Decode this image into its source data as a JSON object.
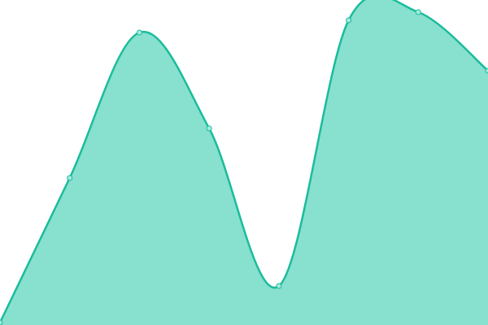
{
  "chart_data": {
    "type": "area",
    "categories": [
      null,
      null,
      null,
      null,
      null,
      null,
      null,
      null
    ],
    "values": [
      3,
      181,
      360,
      242,
      48,
      375,
      385,
      313
    ],
    "ylim": [
      0,
      400
    ],
    "color": "#1abc9c",
    "fill_color": "#88e0cf",
    "point_fill": "#a8eadd"
  }
}
